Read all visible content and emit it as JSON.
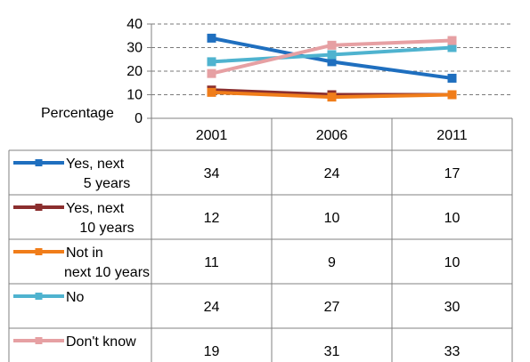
{
  "chart_data": {
    "type": "line",
    "ylabel": "Percentage",
    "ylim": [
      0,
      40
    ],
    "yticks": [
      0,
      10,
      20,
      30,
      40
    ],
    "categories": [
      "2001",
      "2006",
      "2011"
    ],
    "grid": true,
    "legend_placement": "data-table",
    "series": [
      {
        "name": "Yes, next 5 years",
        "values": [
          34,
          24,
          17
        ],
        "color": "#1f6fbf"
      },
      {
        "name": "Yes, next 10 years",
        "values": [
          12,
          10,
          10
        ],
        "color": "#8b2e2e"
      },
      {
        "name": "Not in next 10 years",
        "values": [
          11,
          9,
          10
        ],
        "color": "#f07d1a"
      },
      {
        "name": "No",
        "values": [
          24,
          27,
          30
        ],
        "color": "#4fb3cf"
      },
      {
        "name": "Don't know",
        "values": [
          19,
          31,
          33
        ],
        "color": "#e6a0a3"
      }
    ]
  }
}
